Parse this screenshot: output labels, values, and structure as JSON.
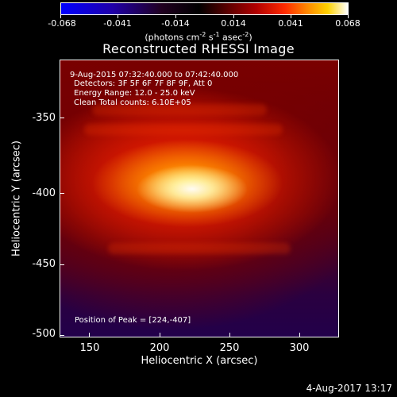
{
  "colorbar": {
    "ticks": [
      "-0.068",
      "-0.041",
      "-0.014",
      "0.014",
      "0.041",
      "0.068"
    ],
    "units_prefix": "(photons cm",
    "units_exp1": "-2",
    "units_mid": " s",
    "units_exp2": "-1",
    "units_mid2": " asec",
    "units_exp3": "-2",
    "units_suffix": ")",
    "colors": [
      "#0000ff",
      "#000000",
      "#b00000",
      "#ff8a00",
      "#ffffff"
    ]
  },
  "title": "Reconstructed RHESSI Image",
  "annotations": {
    "time_range": "9-Aug-2015 07:32:40.000 to 07:42:40.000",
    "detectors": "Detectors: 3F 5F 6F 7F 8F 9F, Att 0",
    "energy": "Energy Range: 12.0 - 25.0 keV",
    "clean": "Clean     Total counts: 6.10E+05",
    "peak": "Position of Peak = [224,-407]"
  },
  "axes": {
    "x_title": "Heliocentric X (arcsec)",
    "y_title": "Heliocentric Y (arcsec)",
    "x_ticks": [
      "150",
      "200",
      "250",
      "300"
    ],
    "y_ticks": [
      "-350",
      "-400",
      "-450",
      "-500"
    ]
  },
  "footer": {
    "date": "4-Aug-2017 13:17"
  }
}
